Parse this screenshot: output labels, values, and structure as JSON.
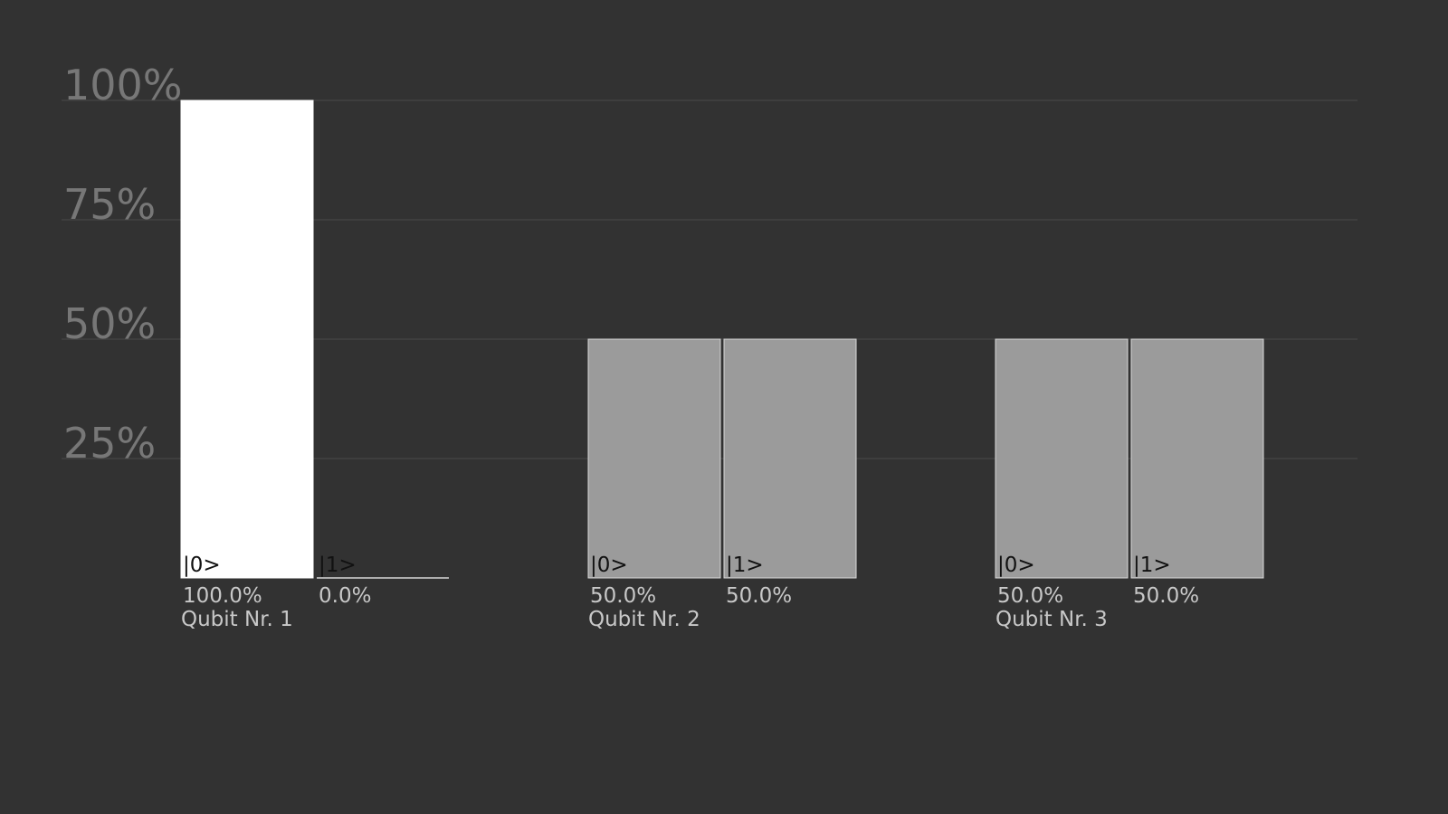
{
  "chart_data": {
    "type": "bar",
    "title": "",
    "xlabel": "",
    "ylabel": "",
    "ylim": [
      0,
      100
    ],
    "yticks": [
      {
        "value": 100,
        "label": "100%"
      },
      {
        "value": 75,
        "label": "75%"
      },
      {
        "value": 50,
        "label": "50%"
      },
      {
        "value": 25,
        "label": "25%"
      }
    ],
    "grid": true,
    "legend": "none",
    "colors": {
      "background": "#323232",
      "grid": "#4a4a4a",
      "tick_text": "#777777",
      "label_text": "#c8c8c8",
      "state_text": "#111111",
      "bar_max": "#ffffff",
      "bar_other": "#9b9b9b",
      "bar_edge": "#d8d8d8"
    },
    "groups": [
      {
        "name": "Qubit Nr. 1",
        "bars": [
          {
            "state": "|0>",
            "value": 100.0,
            "value_label": "100.0%",
            "highlight": true
          },
          {
            "state": "|1>",
            "value": 0.0,
            "value_label": "0.0%",
            "highlight": false
          }
        ]
      },
      {
        "name": "Qubit Nr. 2",
        "bars": [
          {
            "state": "|0>",
            "value": 50.0,
            "value_label": "50.0%",
            "highlight": false
          },
          {
            "state": "|1>",
            "value": 50.0,
            "value_label": "50.0%",
            "highlight": false
          }
        ]
      },
      {
        "name": "Qubit Nr. 3",
        "bars": [
          {
            "state": "|0>",
            "value": 50.0,
            "value_label": "50.0%",
            "highlight": false
          },
          {
            "state": "|1>",
            "value": 50.0,
            "value_label": "50.0%",
            "highlight": false
          }
        ]
      }
    ]
  }
}
